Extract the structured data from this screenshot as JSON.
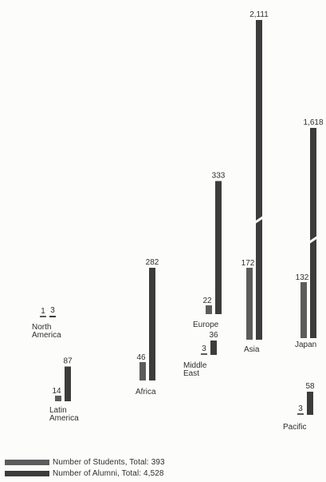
{
  "chart_data": {
    "type": "bar",
    "series": [
      {
        "name": "Number of Students, Total: 393",
        "color": "#5c5c5c"
      },
      {
        "name": "Number of Alumni, Total: 4,528",
        "color": "#3c3c3c"
      }
    ],
    "regions": [
      {
        "label": [
          "North",
          "America"
        ],
        "students": 1,
        "alumni": 3,
        "students_label": "1",
        "alumni_label": "3"
      },
      {
        "label": [
          "Latin",
          "America"
        ],
        "students": 14,
        "alumni": 87,
        "students_label": "14",
        "alumni_label": "87"
      },
      {
        "label": [
          "Africa"
        ],
        "students": 46,
        "alumni": 282,
        "students_label": "46",
        "alumni_label": "282"
      },
      {
        "label": [
          "Middle",
          "East"
        ],
        "students": 3,
        "alumni": 36,
        "students_label": "3",
        "alumni_label": "36"
      },
      {
        "label": [
          "Europe"
        ],
        "students": 22,
        "alumni": 333,
        "students_label": "22",
        "alumni_label": "333"
      },
      {
        "label": [
          "Asia"
        ],
        "students": 172,
        "alumni": 2111,
        "students_label": "172",
        "alumni_label": "2,111",
        "axis_break": true
      },
      {
        "label": [
          "Japan"
        ],
        "students": 132,
        "alumni": 1618,
        "students_label": "132",
        "alumni_label": "1,618",
        "axis_break": true
      },
      {
        "label": [
          "Pacific"
        ],
        "students": 3,
        "alumni": 58,
        "students_label": "3",
        "alumni_label": "58"
      }
    ]
  },
  "legend": {
    "students": "Number of Students, Total: 393",
    "alumni": "Number of Alumni, Total: 4,528"
  }
}
